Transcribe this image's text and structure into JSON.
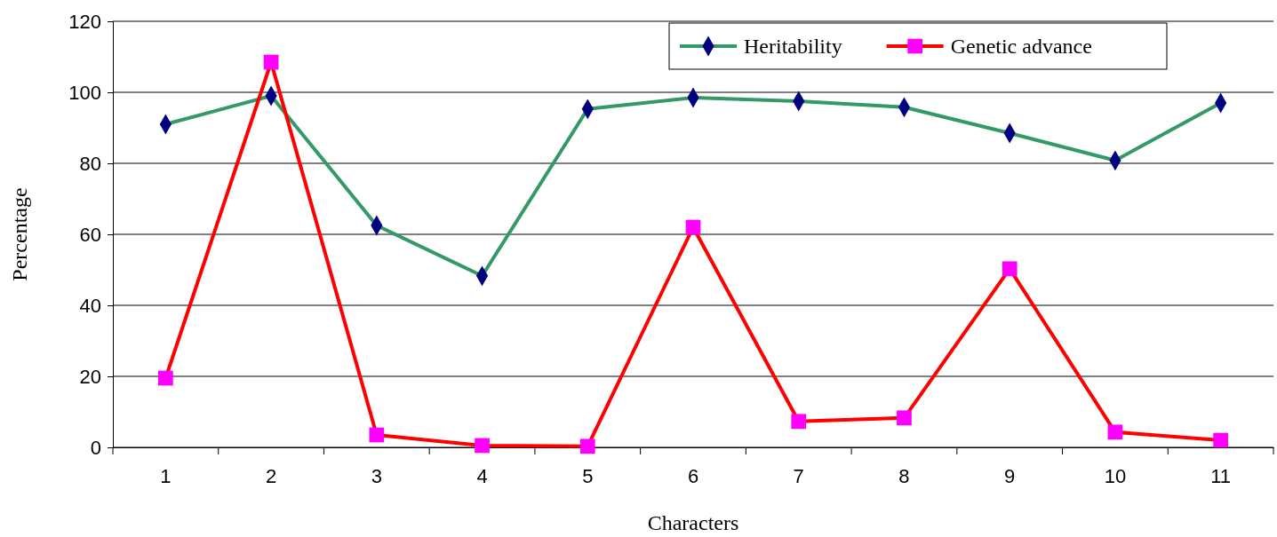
{
  "chart_data": {
    "type": "line",
    "xlabel": "Characters",
    "ylabel": "Percentage",
    "categories": [
      "1",
      "2",
      "3",
      "4",
      "5",
      "6",
      "7",
      "8",
      "9",
      "10",
      "11"
    ],
    "ylim": [
      0,
      120
    ],
    "yticks": [
      0,
      20,
      40,
      60,
      80,
      100,
      120
    ],
    "grid": "y",
    "legend": "top right",
    "series": [
      {
        "name": "Heritability",
        "color": "#339966",
        "marker": "diamond",
        "colors": [
          "#000080",
          "#000080",
          "#000080",
          "#000080",
          "#000080",
          "#000080",
          "#000080",
          "#000080",
          "#000080",
          "#000080",
          "#000080"
        ],
        "values": [
          91,
          99,
          62.5,
          48.3,
          95.3,
          98.5,
          97.5,
          95.8,
          88.5,
          80.8,
          97
        ]
      },
      {
        "name": "Genetic advance",
        "color": "#ff0000",
        "marker": "square",
        "colors": [
          "#ff00ff",
          "#ff00ff",
          "#ff00ff",
          "#ff00ff",
          "#ff00ff",
          "#ff00ff",
          "#ff00ff",
          "#ff00ff",
          "#ff00ff",
          "#ff00ff",
          "#ff00ff"
        ],
        "values": [
          19.5,
          108.5,
          3.5,
          0.5,
          0.3,
          62,
          7.3,
          8.3,
          50.3,
          4.3,
          2
        ]
      }
    ]
  }
}
